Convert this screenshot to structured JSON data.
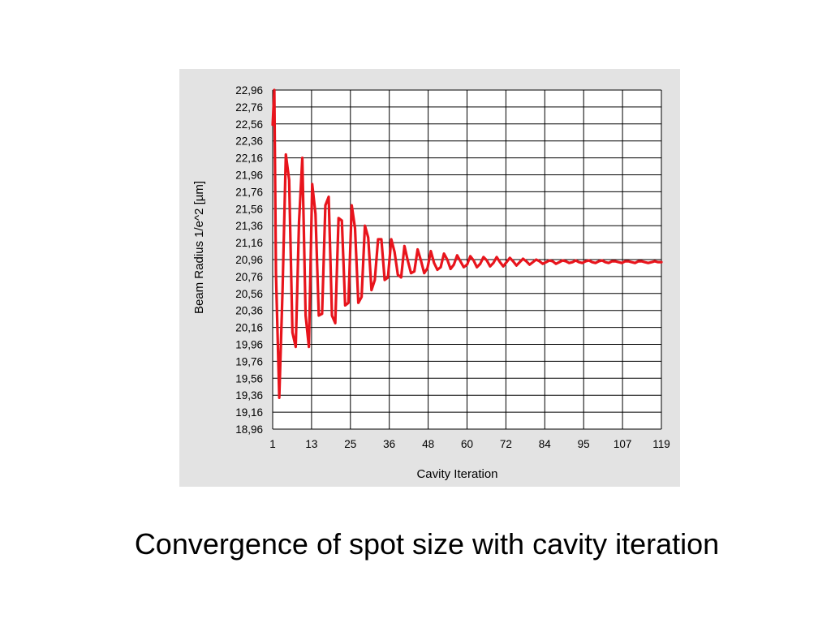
{
  "caption": "Convergence of spot size with cavity iteration",
  "chart_data": {
    "type": "line",
    "title": "",
    "xlabel": "Cavity Iteration",
    "ylabel": "Beam Radius 1/e^2  [µm]",
    "x_tick_labels": [
      "1",
      "13",
      "25",
      "36",
      "48",
      "60",
      "72",
      "84",
      "95",
      "107",
      "119"
    ],
    "y_tick_labels": [
      "22,96",
      "22,76",
      "22,56",
      "22,36",
      "22,16",
      "21,96",
      "21,76",
      "21,56",
      "21,36",
      "21,16",
      "20,96",
      "20,76",
      "20,56",
      "20,36",
      "20,16",
      "19,96",
      "19,76",
      "19,56",
      "19,36",
      "19,16",
      "18,96"
    ],
    "xlim": [
      1,
      119
    ],
    "ylim": [
      18.96,
      22.96
    ],
    "grid": true,
    "legend": "none",
    "colors": {
      "background": "#e3e3e3",
      "plot_area": "#ffffff",
      "grid": "#000000",
      "series": "#e8141c"
    },
    "series": [
      {
        "x": [
          1,
          1.5,
          2,
          3,
          4,
          5,
          6,
          7,
          8,
          9,
          10,
          11,
          12,
          13,
          14,
          15,
          16,
          17,
          18,
          19,
          20,
          21,
          22,
          23,
          24,
          25,
          26,
          27,
          28,
          29,
          30,
          31,
          32,
          33,
          34,
          35,
          36,
          37,
          38,
          39,
          40,
          41,
          42,
          43,
          44,
          45,
          46,
          47,
          48,
          49,
          50,
          51,
          52,
          53,
          54,
          55,
          56,
          57,
          58,
          59,
          60,
          61,
          62,
          63,
          64,
          65,
          66,
          67,
          68,
          69,
          70,
          71,
          72,
          73,
          74,
          75,
          76,
          77,
          78,
          79,
          80,
          81,
          82,
          83,
          84,
          85,
          86,
          87,
          88,
          89,
          90,
          91,
          92,
          93,
          94,
          95,
          96,
          97,
          98,
          99,
          100,
          101,
          102,
          103,
          104,
          105,
          106,
          107,
          108,
          109,
          110,
          111,
          112,
          113,
          114,
          115,
          116,
          117,
          118,
          119
        ],
        "values": [
          22.55,
          22.96,
          20.8,
          19.33,
          20.6,
          22.2,
          21.9,
          20.1,
          19.93,
          21.4,
          22.16,
          20.3,
          19.93,
          21.85,
          21.5,
          20.3,
          20.32,
          21.6,
          21.7,
          20.3,
          20.21,
          21.45,
          21.42,
          20.42,
          20.45,
          21.6,
          21.33,
          20.45,
          20.52,
          21.36,
          21.22,
          20.6,
          20.72,
          21.2,
          21.2,
          20.72,
          20.75,
          21.2,
          21.05,
          20.78,
          20.75,
          21.12,
          20.95,
          20.8,
          20.82,
          21.08,
          20.95,
          20.8,
          20.86,
          21.06,
          20.92,
          20.84,
          20.87,
          21.03,
          20.96,
          20.85,
          20.9,
          21.01,
          20.94,
          20.87,
          20.9,
          21.0,
          20.95,
          20.87,
          20.91,
          20.99,
          20.95,
          20.88,
          20.92,
          20.99,
          20.93,
          20.88,
          20.93,
          20.98,
          20.94,
          20.89,
          20.93,
          20.97,
          20.94,
          20.9,
          20.93,
          20.96,
          20.94,
          20.91,
          20.93,
          20.95,
          20.94,
          20.91,
          20.93,
          20.95,
          20.94,
          20.92,
          20.93,
          20.95,
          20.93,
          20.92,
          20.94,
          20.95,
          20.93,
          20.92,
          20.94,
          20.95,
          20.93,
          20.92,
          20.94,
          20.94,
          20.93,
          20.92,
          20.94,
          20.94,
          20.93,
          20.92,
          20.94,
          20.94,
          20.93,
          20.92,
          20.93,
          20.94,
          20.93,
          20.93
        ]
      }
    ]
  }
}
